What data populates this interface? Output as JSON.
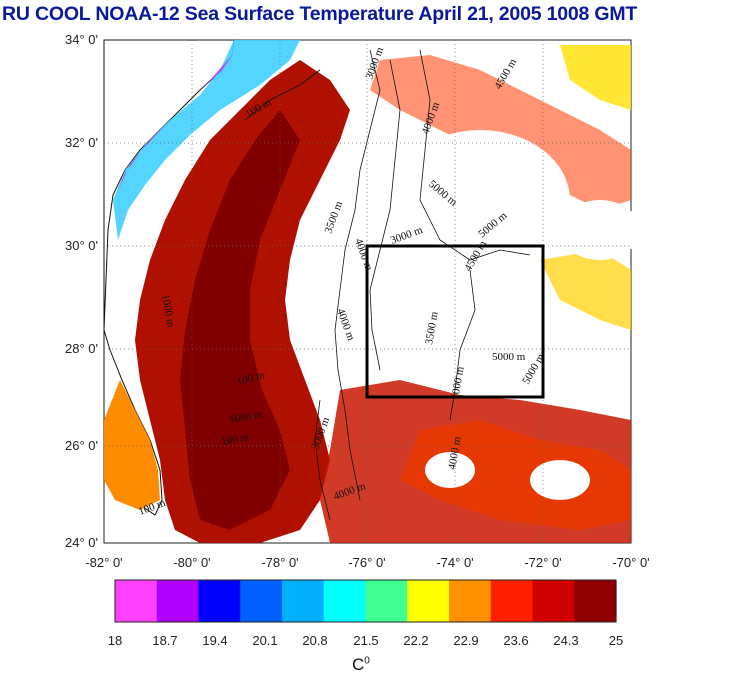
{
  "title": "RU COOL  NOAA-12 Sea Surface Temperature April 21, 2005 1008 GMT",
  "map": {
    "lat_labels": [
      "34° 0'",
      "32° 0'",
      "30° 0'",
      "28° 0'",
      "26° 0'",
      "24° 0'"
    ],
    "lon_labels": [
      "-82° 0'",
      "-80° 0'",
      "-78° 0'",
      "-76° 0'",
      "-74° 0'",
      "-72° 0'",
      "-70° 0'"
    ],
    "lat_range": [
      24,
      34
    ],
    "lon_range": [
      -82,
      -70
    ],
    "study_box": {
      "lon": [
        -76,
        -72
      ],
      "lat": [
        27,
        30
      ]
    },
    "contour_labels": [
      "100 m",
      "3000 m",
      "4000 m",
      "4500 m",
      "5000 m",
      "3500 m",
      "4000 m",
      "3000 m",
      "5000 m",
      "5000 m",
      "4500 m",
      "3500 m",
      "4000 m",
      "1000 m",
      "1000 m",
      "100 m",
      "1000 m",
      "3000 m",
      "4000 m",
      "4000 m",
      "5000 m",
      "100 m",
      "100 m"
    ]
  },
  "colorbar": {
    "tick_labels": [
      "18",
      "18.7",
      "19.4",
      "20.1",
      "20.8",
      "21.5",
      "22.2",
      "22.9",
      "23.6",
      "24.3",
      "25"
    ],
    "min": 18,
    "max": 25,
    "unit": "C",
    "unit_sup": "0",
    "colors": [
      "#ff40ff",
      "#b000ff",
      "#0000ff",
      "#0060ff",
      "#00b0ff",
      "#00ffff",
      "#40ff90",
      "#ffff00",
      "#ff9000",
      "#ff2000",
      "#d00000",
      "#900000"
    ]
  }
}
